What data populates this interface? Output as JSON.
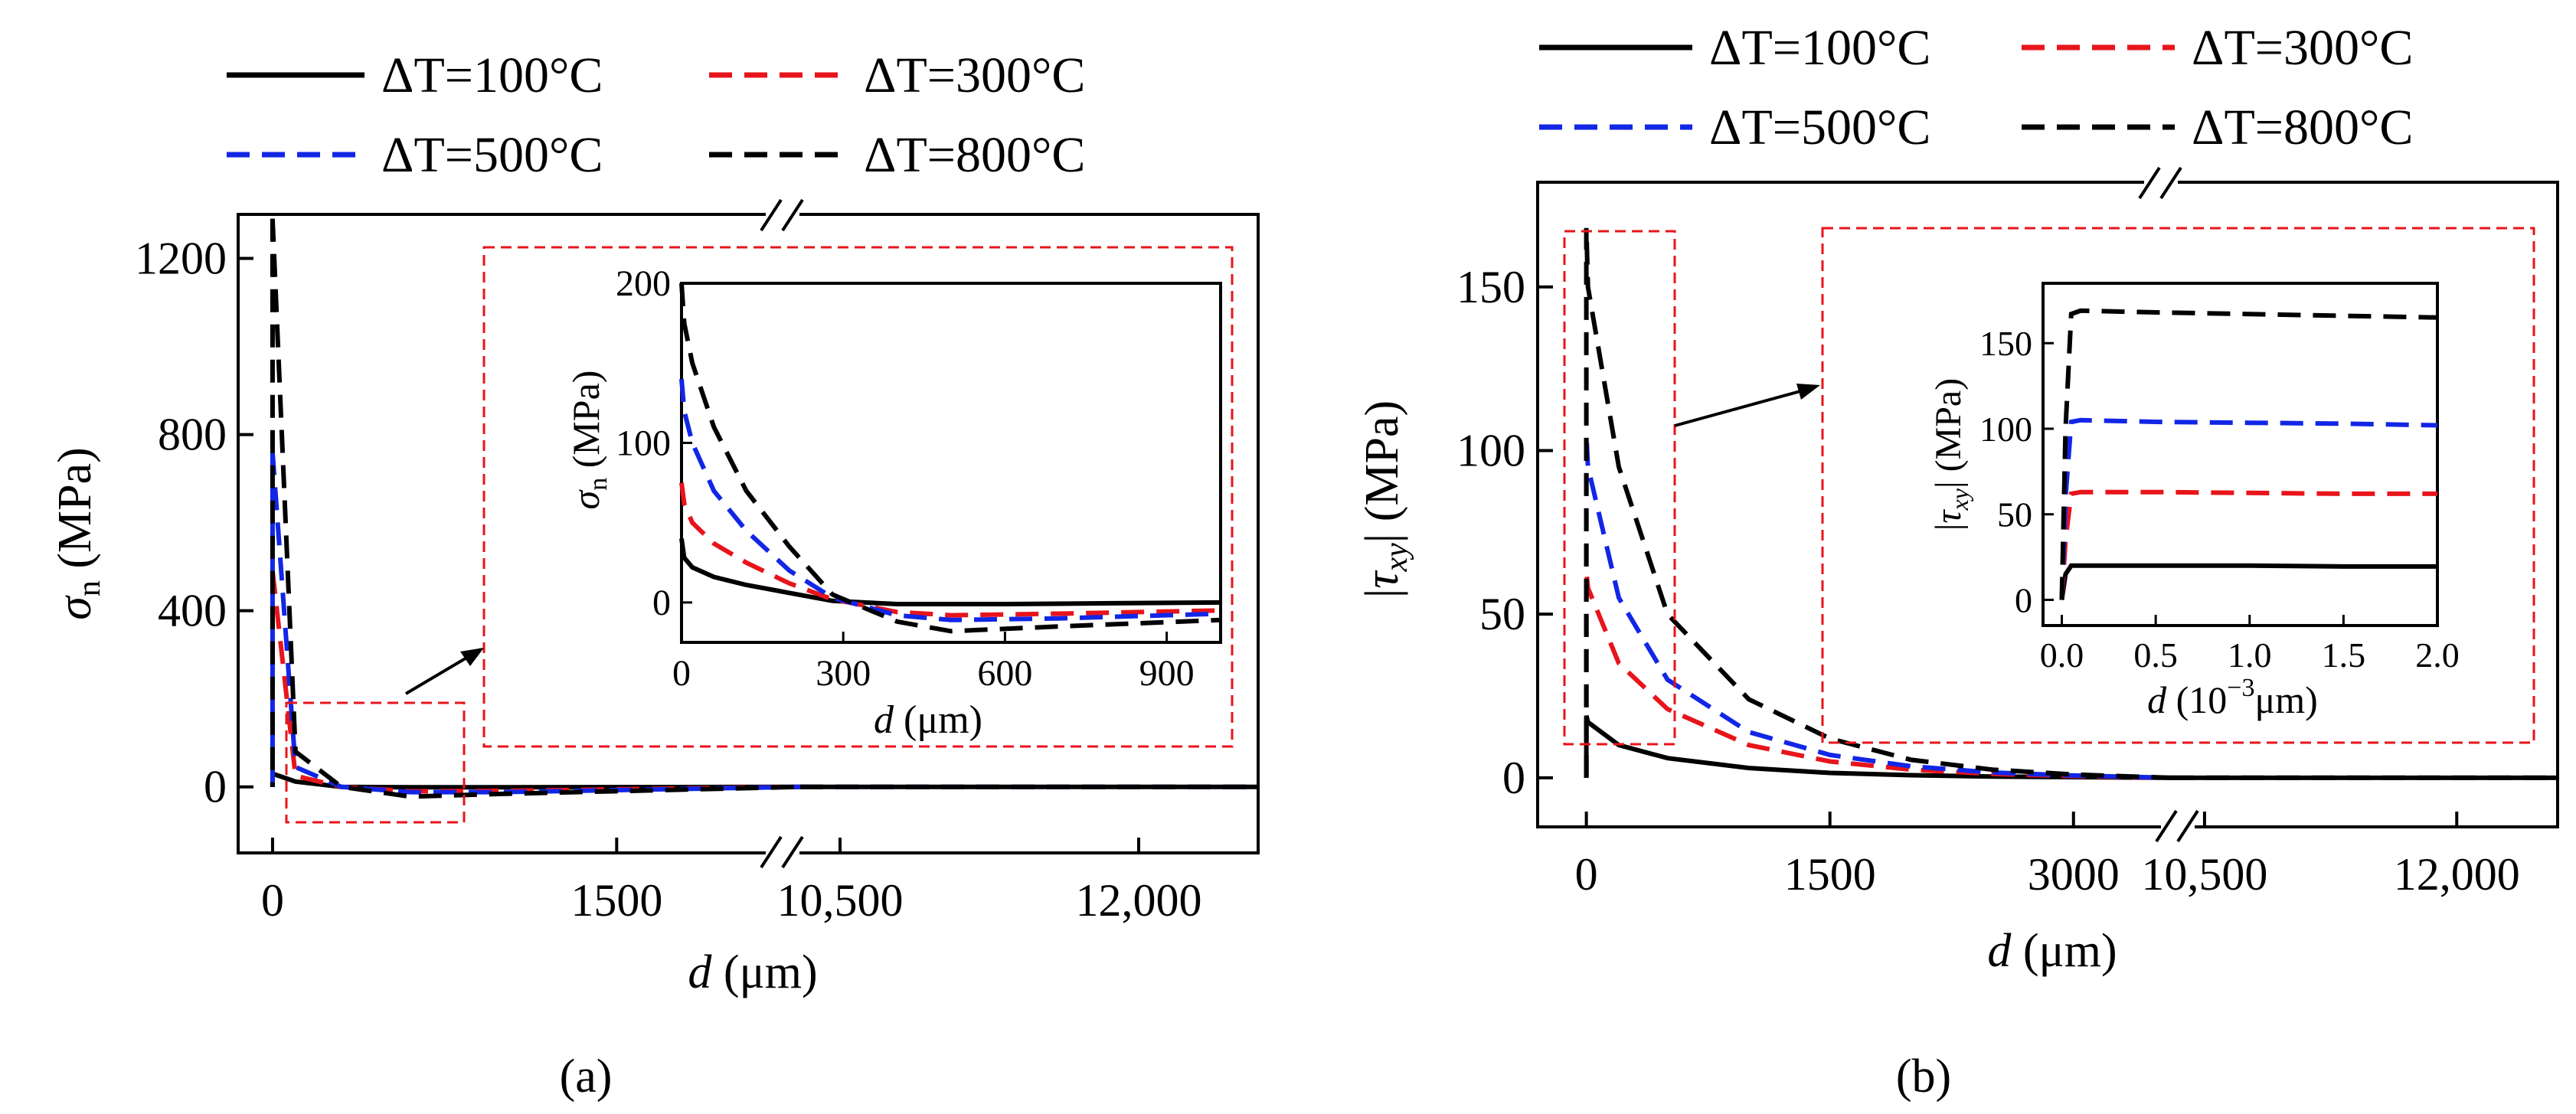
{
  "legend_entries": [
    {
      "label": "ΔT=100°C",
      "color": "#000000",
      "dash": "solid"
    },
    {
      "label": "ΔT=300°C",
      "color": "#e8141b",
      "dash": "dashed"
    },
    {
      "label": "ΔT=500°C",
      "color": "#1226e6",
      "dash": "dashed"
    },
    {
      "label": "ΔT=800°C",
      "color": "#000000",
      "dash": "dashed"
    }
  ],
  "panel_labels": [
    "(a)",
    "(b)"
  ],
  "chart_data": [
    {
      "type": "line",
      "panel": "(a)",
      "xlabel": "d (μm)",
      "ylabel": "σn (MPa)",
      "ylim": [
        -150,
        1300
      ],
      "xlim": [
        -150,
        12600
      ],
      "x_broken_axis": true,
      "x_ticks": [
        "0",
        "1500",
        "10,500",
        "12,000"
      ],
      "y_ticks": [
        "0",
        "400",
        "800",
        "1200"
      ],
      "zoom_box": {
        "x": [
          -90,
          860
        ],
        "y": [
          -120,
          160
        ]
      },
      "series": [
        {
          "name": "ΔT=100°C",
          "peak": 30,
          "min": -3,
          "x": [
            0,
            100,
            300,
            600,
            1000,
            2300,
            10300,
            12600
          ],
          "y": [
            30,
            12,
            0,
            -1,
            -1,
            0,
            0,
            0
          ]
        },
        {
          "name": "ΔT=300°C",
          "peak": 490,
          "min": -12,
          "x": [
            0,
            100,
            300,
            600,
            1000,
            2300,
            10300,
            12600
          ],
          "y": [
            490,
            25,
            0,
            -10,
            -9,
            0,
            0,
            0
          ]
        },
        {
          "name": "ΔT=500°C",
          "peak": 760,
          "min": -15,
          "x": [
            0,
            100,
            300,
            600,
            1000,
            2300,
            10300,
            12600
          ],
          "y": [
            760,
            45,
            0,
            -12,
            -12,
            0,
            0,
            0
          ]
        },
        {
          "name": "ΔT=800°C",
          "peak": 1290,
          "min": -25,
          "x": [
            0,
            100,
            300,
            600,
            1000,
            2300,
            10300,
            12600
          ],
          "y": [
            1290,
            80,
            0,
            -22,
            -16,
            0,
            0,
            0
          ]
        }
      ],
      "inset": {
        "xlabel": "d (μm)",
        "ylabel": "σn (MPa)",
        "xlim": [
          0,
          1000
        ],
        "ylim": [
          -25,
          200
        ],
        "x_ticks": [
          "0",
          "300",
          "600",
          "900"
        ],
        "y_ticks": [
          "0",
          "100",
          "200"
        ],
        "series": [
          {
            "name": "ΔT=100°C",
            "x": [
              0,
              5,
              20,
              60,
              120,
              200,
              280,
              400,
              600,
              800,
              1000
            ],
            "y": [
              40,
              28,
              22,
              16,
              11,
              6,
              1,
              -1,
              -1,
              -0.5,
              0
            ]
          },
          {
            "name": "ΔT=300°C",
            "x": [
              0,
              5,
              20,
              60,
              120,
              200,
              280,
              400,
              500,
              700,
              1000
            ],
            "y": [
              75,
              62,
              50,
              37,
              25,
              12,
              2,
              -6,
              -8,
              -7,
              -5
            ]
          },
          {
            "name": "ΔT=500°C",
            "x": [
              0,
              5,
              20,
              60,
              120,
              200,
              280,
              400,
              500,
              700,
              1000
            ],
            "y": [
              140,
              120,
              100,
              70,
              45,
              20,
              3,
              -8,
              -11,
              -10,
              -7
            ]
          },
          {
            "name": "ΔT=800°C",
            "x": [
              0,
              5,
              20,
              60,
              120,
              200,
              280,
              400,
              500,
              700,
              1000
            ],
            "y": [
              200,
              175,
              150,
              110,
              70,
              35,
              5,
              -12,
              -18,
              -15,
              -11
            ]
          }
        ]
      }
    },
    {
      "type": "line",
      "panel": "(b)",
      "xlabel": "d (μm)",
      "ylabel": "|τxy| (MPa)",
      "ylim": [
        -15,
        182
      ],
      "xlim": [
        -300,
        12600
      ],
      "x_broken_axis": true,
      "x_ticks": [
        "0",
        "1500",
        "3000",
        "10,500",
        "12,000"
      ],
      "y_ticks": [
        "0",
        "50",
        "100",
        "150"
      ],
      "zoom_box": {
        "x": [
          -200,
          430
        ],
        "y": [
          10,
          170
        ]
      },
      "series": [
        {
          "name": "ΔT=100°C",
          "x": [
            0,
            10,
            200,
            500,
            1000,
            1500,
            2000,
            2500,
            3000,
            3600,
            10300,
            12600
          ],
          "y": [
            19,
            17,
            10,
            6,
            3,
            1.5,
            0.8,
            0.4,
            0.2,
            0,
            0,
            0
          ]
        },
        {
          "name": "ΔT=300°C",
          "x": [
            0,
            10,
            200,
            500,
            1000,
            1500,
            2000,
            2500,
            3000,
            3600,
            10300,
            12600
          ],
          "y": [
            63,
            58,
            35,
            21,
            10,
            5,
            2.5,
            1.2,
            0.5,
            0,
            0,
            0
          ]
        },
        {
          "name": "ΔT=500°C",
          "x": [
            0,
            10,
            200,
            500,
            1000,
            1500,
            2000,
            2500,
            3000,
            3600,
            10300,
            12600
          ],
          "y": [
            105,
            95,
            55,
            30,
            14,
            7,
            3.5,
            1.6,
            0.7,
            0,
            0,
            0
          ]
        },
        {
          "name": "ΔT=800°C",
          "x": [
            0,
            10,
            200,
            500,
            1000,
            1500,
            2000,
            2500,
            3000,
            3600,
            10300,
            12600
          ],
          "y": [
            168,
            150,
            95,
            50,
            24,
            12,
            5.5,
            2.5,
            1,
            0,
            0,
            0
          ]
        }
      ],
      "inset": {
        "xlabel": "d (10−3μm)",
        "ylabel": "|τxy| (MPa)",
        "xlim": [
          -0.1,
          2.0
        ],
        "ylim": [
          -15,
          185
        ],
        "x_ticks": [
          "0.0",
          "0.5",
          "1.0",
          "1.5",
          "2.0"
        ],
        "y_ticks": [
          "0",
          "50",
          "100",
          "150"
        ],
        "series": [
          {
            "name": "ΔT=100°C",
            "x": [
              0,
              0.02,
              0.05,
              0.1,
              0.5,
              1.0,
              1.5,
              2.0
            ],
            "y": [
              0,
              15,
              20,
              20,
              20,
              20,
              19.5,
              19.5
            ]
          },
          {
            "name": "ΔT=300°C",
            "x": [
              0,
              0.02,
              0.05,
              0.1,
              0.5,
              1.0,
              1.5,
              2.0
            ],
            "y": [
              0,
              35,
              62,
              63,
              63,
              62.5,
              62,
              62
            ]
          },
          {
            "name": "ΔT=500°C",
            "x": [
              0,
              0.02,
              0.05,
              0.1,
              0.5,
              1.0,
              1.5,
              2.0
            ],
            "y": [
              0,
              60,
              104,
              105,
              104,
              103.5,
              103,
              102
            ]
          },
          {
            "name": "ΔT=800°C",
            "x": [
              0,
              0.02,
              0.05,
              0.1,
              0.5,
              1.0,
              1.5,
              2.0
            ],
            "y": [
              0,
              100,
              167,
              169,
              168,
              167,
              166,
              165
            ]
          }
        ]
      }
    }
  ]
}
